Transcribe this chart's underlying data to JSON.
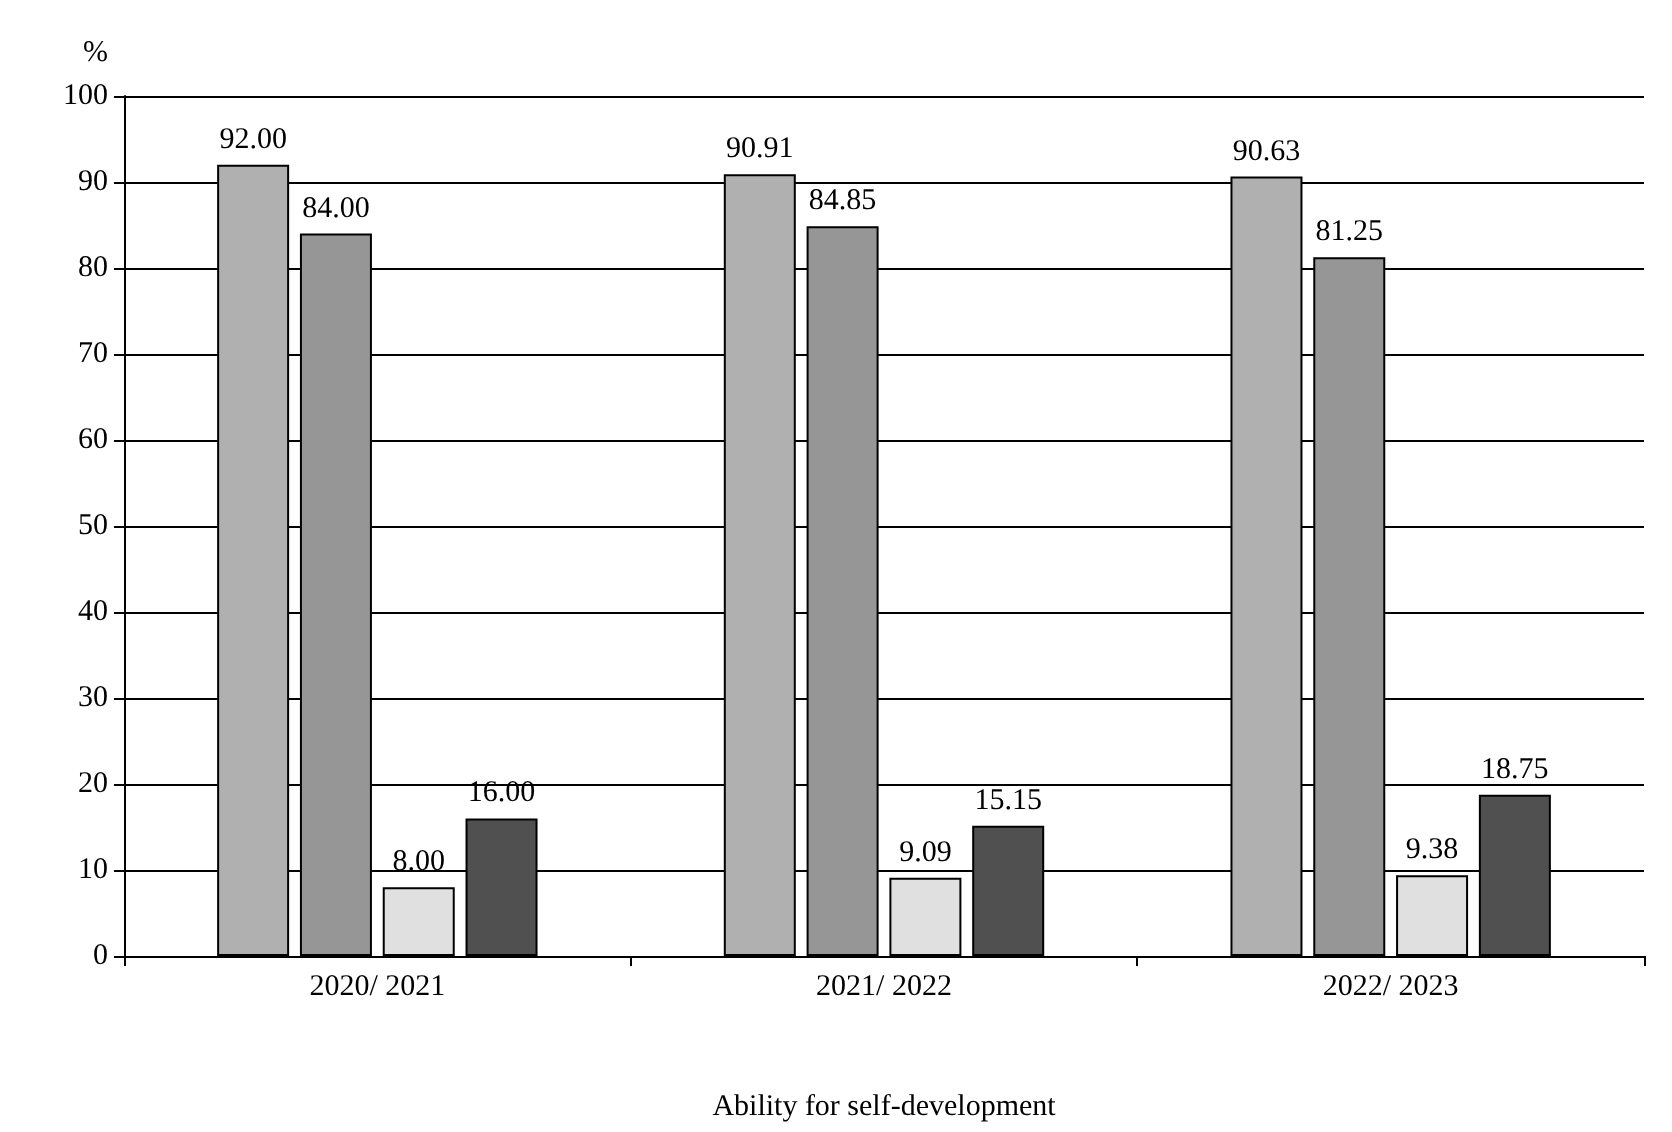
{
  "chart_data": {
    "type": "bar",
    "xlabel": "Ability for self-development",
    "ylabel": "%",
    "categories": [
      "2020/ 2021",
      "2021/ 2022",
      "2022/ 2023"
    ],
    "series": [
      {
        "color": "#b0b0b0",
        "values": [
          92.0,
          90.91,
          90.63
        ],
        "value_labels": [
          "92.00",
          "90.91",
          "90.63"
        ]
      },
      {
        "color": "#969696",
        "values": [
          84.0,
          84.85,
          81.25
        ],
        "value_labels": [
          "84.00",
          "84.85",
          "81.25"
        ]
      },
      {
        "color": "#e0e0e0",
        "values": [
          8.0,
          9.09,
          9.38
        ],
        "value_labels": [
          "8.00",
          "9.09",
          "9.38"
        ]
      },
      {
        "color": "#505050",
        "values": [
          16.0,
          15.15,
          18.75
        ],
        "value_labels": [
          "16.00",
          "15.15",
          "18.75"
        ]
      }
    ],
    "ylim": [
      0,
      100
    ],
    "yticks": [
      0,
      10,
      20,
      30,
      40,
      50,
      60,
      70,
      80,
      90,
      100
    ],
    "grid": "y"
  }
}
